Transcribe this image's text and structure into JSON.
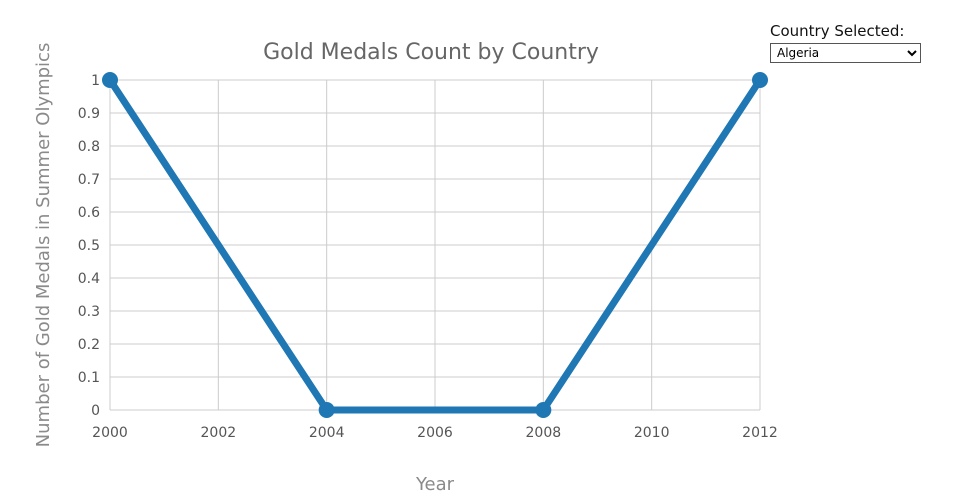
{
  "selector": {
    "label": "Country Selected:",
    "selected": "Algeria",
    "options": [
      "Algeria"
    ]
  },
  "chart_data": {
    "type": "line",
    "title": "Gold Medals Count by Country",
    "xlabel": "Year",
    "ylabel": "Number of Gold Medals in Summer Olympics",
    "x": [
      2000,
      2004,
      2008,
      2012
    ],
    "series": [
      {
        "values": [
          1,
          0,
          0,
          1
        ]
      }
    ],
    "xlim": [
      2000,
      2012
    ],
    "ylim": [
      0,
      1
    ],
    "xticks": [
      2000,
      2002,
      2004,
      2006,
      2008,
      2010,
      2012
    ],
    "yticks": [
      0,
      0.1,
      0.2,
      0.3,
      0.4,
      0.5,
      0.6,
      0.7,
      0.8,
      0.9,
      1
    ],
    "grid": true,
    "line_color": "#1f77b4",
    "grid_color": "#cccccc"
  }
}
